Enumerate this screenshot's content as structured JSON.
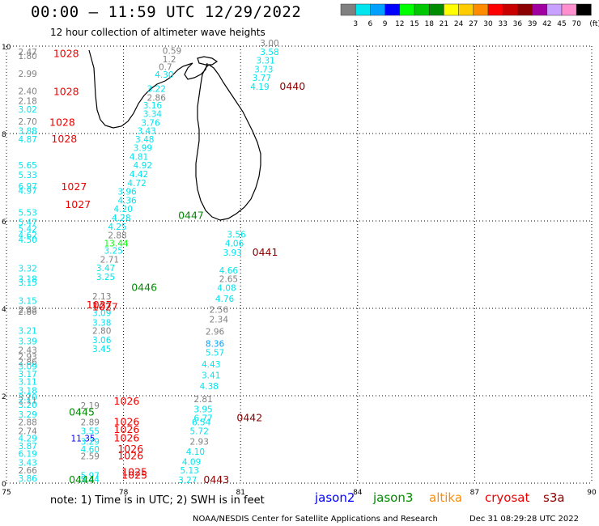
{
  "header": {
    "title": "00:00 – 11:59 UTC 12/29/2022",
    "subtitle": "12 hour collection of altimeter wave heights"
  },
  "legend": {
    "unit": "(ft)",
    "bins": [
      {
        "label": "3",
        "color": "#808080"
      },
      {
        "label": "6",
        "color": "#00e5ee"
      },
      {
        "label": "9",
        "color": "#00a0ff"
      },
      {
        "label": "12",
        "color": "#0000ff"
      },
      {
        "label": "15",
        "color": "#00ff00"
      },
      {
        "label": "18",
        "color": "#00c800"
      },
      {
        "label": "21",
        "color": "#008c00"
      },
      {
        "label": "24",
        "color": "#ffff00"
      },
      {
        "label": "27",
        "color": "#ffcc00"
      },
      {
        "label": "30",
        "color": "#ff8c00"
      },
      {
        "label": "33",
        "color": "#ff0000"
      },
      {
        "label": "36",
        "color": "#c80000"
      },
      {
        "label": "39",
        "color": "#8b0000"
      },
      {
        "label": "42",
        "color": "#a000a0"
      },
      {
        "label": "45",
        "color": "#c8a0ff"
      },
      {
        "label": "70",
        "color": "#ff90d0"
      },
      {
        "label": "",
        "color": "#000000"
      }
    ]
  },
  "map": {
    "x_ticks": [
      "75",
      "78",
      "81",
      "84",
      "87",
      "90"
    ],
    "y_ticks": [
      "0",
      "2",
      "4",
      "6",
      "8",
      "10"
    ],
    "x_range": [
      75,
      90
    ],
    "y_range": [
      0,
      10
    ]
  },
  "observations": [
    {
      "x": 75.3,
      "y": 9.8,
      "v": "2.47",
      "c": "#808080"
    },
    {
      "x": 75.3,
      "y": 9.7,
      "v": "1.80",
      "c": "#808080"
    },
    {
      "x": 75.3,
      "y": 9.3,
      "v": "2.99",
      "c": "#808080"
    },
    {
      "x": 75.3,
      "y": 8.9,
      "v": "2.40",
      "c": "#808080"
    },
    {
      "x": 75.3,
      "y": 8.68,
      "v": "2.18",
      "c": "#808080"
    },
    {
      "x": 75.3,
      "y": 8.48,
      "v": "3.02",
      "c": "#00e5ee"
    },
    {
      "x": 75.3,
      "y": 8.2,
      "v": "2.70",
      "c": "#808080"
    },
    {
      "x": 75.3,
      "y": 7.99,
      "v": "3.88",
      "c": "#00e5ee"
    },
    {
      "x": 75.3,
      "y": 7.8,
      "v": "4.87",
      "c": "#00e5ee"
    },
    {
      "x": 75.3,
      "y": 7.2,
      "v": "5.65",
      "c": "#00e5ee"
    },
    {
      "x": 75.3,
      "y": 6.98,
      "v": "5.33",
      "c": "#00e5ee"
    },
    {
      "x": 75.3,
      "y": 6.72,
      "v": "6.97",
      "c": "#00e5ee"
    },
    {
      "x": 75.3,
      "y": 6.62,
      "v": "4.97",
      "c": "#00e5ee"
    },
    {
      "x": 75.3,
      "y": 6.12,
      "v": "5.53",
      "c": "#00e5ee"
    },
    {
      "x": 75.3,
      "y": 5.9,
      "v": "5.47",
      "c": "#00e5ee"
    },
    {
      "x": 75.3,
      "y": 5.75,
      "v": "5.42",
      "c": "#00e5ee"
    },
    {
      "x": 75.3,
      "y": 5.6,
      "v": "4.62",
      "c": "#00e5ee"
    },
    {
      "x": 75.3,
      "y": 5.5,
      "v": "4.50",
      "c": "#00e5ee"
    },
    {
      "x": 75.3,
      "y": 4.84,
      "v": "3.32",
      "c": "#00e5ee"
    },
    {
      "x": 75.3,
      "y": 4.6,
      "v": "3.18",
      "c": "#00e5ee"
    },
    {
      "x": 75.3,
      "y": 4.52,
      "v": "3.15",
      "c": "#00e5ee"
    },
    {
      "x": 75.3,
      "y": 4.1,
      "v": "3.15",
      "c": "#00e5ee"
    },
    {
      "x": 75.3,
      "y": 3.9,
      "v": "2.83",
      "c": "#808080"
    },
    {
      "x": 75.3,
      "y": 3.85,
      "v": "2.86",
      "c": "#808080"
    },
    {
      "x": 77.2,
      "y": 4.2,
      "v": "2.13",
      "c": "#808080"
    },
    {
      "x": 77.2,
      "y": 4.0,
      "v": "2.52",
      "c": "#808080"
    },
    {
      "x": 77.2,
      "y": 3.82,
      "v": "3.09",
      "c": "#00e5ee"
    },
    {
      "x": 77.2,
      "y": 3.6,
      "v": "3.38",
      "c": "#00e5ee"
    },
    {
      "x": 77.2,
      "y": 3.42,
      "v": "2.80",
      "c": "#808080"
    },
    {
      "x": 75.3,
      "y": 3.42,
      "v": "3.21",
      "c": "#00e5ee"
    },
    {
      "x": 75.3,
      "y": 3.18,
      "v": "3.39",
      "c": "#00e5ee"
    },
    {
      "x": 77.2,
      "y": 3.2,
      "v": "3.06",
      "c": "#00e5ee"
    },
    {
      "x": 77.2,
      "y": 3.0,
      "v": "3.45",
      "c": "#00e5ee"
    },
    {
      "x": 75.3,
      "y": 2.97,
      "v": "2.43",
      "c": "#808080"
    },
    {
      "x": 75.3,
      "y": 2.82,
      "v": "2.93",
      "c": "#808080"
    },
    {
      "x": 75.3,
      "y": 2.7,
      "v": "2.86",
      "c": "#808080"
    },
    {
      "x": 75.3,
      "y": 2.6,
      "v": "3.09",
      "c": "#00e5ee"
    },
    {
      "x": 75.3,
      "y": 2.43,
      "v": "3.17",
      "c": "#00e5ee"
    },
    {
      "x": 75.3,
      "y": 2.25,
      "v": "3.11",
      "c": "#00e5ee"
    },
    {
      "x": 75.3,
      "y": 2.05,
      "v": "3.18",
      "c": "#00e5ee"
    },
    {
      "x": 75.3,
      "y": 1.9,
      "v": "3.20",
      "c": "#00e5ee"
    },
    {
      "x": 75.3,
      "y": 1.82,
      "v": "2.11",
      "c": "#808080"
    },
    {
      "x": 75.3,
      "y": 1.72,
      "v": "3.20",
      "c": "#00e5ee"
    },
    {
      "x": 76.9,
      "y": 1.7,
      "v": "2.19",
      "c": "#808080"
    },
    {
      "x": 75.3,
      "y": 1.5,
      "v": "3.29",
      "c": "#00e5ee"
    },
    {
      "x": 75.3,
      "y": 1.32,
      "v": "2.88",
      "c": "#808080"
    },
    {
      "x": 76.9,
      "y": 1.32,
      "v": "2.89",
      "c": "#808080"
    },
    {
      "x": 75.3,
      "y": 1.12,
      "v": "2.74",
      "c": "#808080"
    },
    {
      "x": 76.9,
      "y": 1.12,
      "v": "3.55",
      "c": "#00e5ee"
    },
    {
      "x": 75.3,
      "y": 0.95,
      "v": "4.29",
      "c": "#00e5ee"
    },
    {
      "x": 76.65,
      "y": 0.95,
      "v": "11.35",
      "c": "#0000ff"
    },
    {
      "x": 76.9,
      "y": 0.88,
      "v": "3.29",
      "c": "#00e5ee"
    },
    {
      "x": 75.3,
      "y": 0.78,
      "v": "3.87",
      "c": "#00e5ee"
    },
    {
      "x": 76.9,
      "y": 0.7,
      "v": "4.60",
      "c": "#00e5ee"
    },
    {
      "x": 75.3,
      "y": 0.6,
      "v": "6.19",
      "c": "#00e5ee"
    },
    {
      "x": 76.9,
      "y": 0.55,
      "v": "2.59",
      "c": "#808080"
    },
    {
      "x": 75.3,
      "y": 0.4,
      "v": "3.43",
      "c": "#00e5ee"
    },
    {
      "x": 75.3,
      "y": 0.22,
      "v": "2.66",
      "c": "#808080"
    },
    {
      "x": 75.3,
      "y": 0.04,
      "v": "3.86",
      "c": "#00e5ee"
    },
    {
      "x": 76.9,
      "y": 0.1,
      "v": "5.97",
      "c": "#00e5ee"
    },
    {
      "x": 76.9,
      "y": 0.02,
      "v": "5.44",
      "c": "#00e5ee"
    },
    {
      "x": 79.0,
      "y": 9.82,
      "v": "0.59",
      "c": "#808080"
    },
    {
      "x": 79.0,
      "y": 9.63,
      "v": "1.2",
      "c": "#808080"
    },
    {
      "x": 78.9,
      "y": 9.45,
      "v": "0.7",
      "c": "#808080"
    },
    {
      "x": 78.8,
      "y": 9.28,
      "v": "4.30",
      "c": "#00e5ee"
    },
    {
      "x": 78.6,
      "y": 8.95,
      "v": "3.22",
      "c": "#00e5ee"
    },
    {
      "x": 78.6,
      "y": 8.75,
      "v": "2.86",
      "c": "#808080"
    },
    {
      "x": 78.5,
      "y": 8.57,
      "v": "3.16",
      "c": "#00e5ee"
    },
    {
      "x": 78.5,
      "y": 8.38,
      "v": "3.34",
      "c": "#00e5ee"
    },
    {
      "x": 78.45,
      "y": 8.18,
      "v": "3.76",
      "c": "#00e5ee"
    },
    {
      "x": 78.35,
      "y": 7.99,
      "v": "3.43",
      "c": "#00e5ee"
    },
    {
      "x": 78.3,
      "y": 7.8,
      "v": "3.48",
      "c": "#00e5ee"
    },
    {
      "x": 78.25,
      "y": 7.6,
      "v": "3.99",
      "c": "#00e5ee"
    },
    {
      "x": 78.15,
      "y": 7.4,
      "v": "4.81",
      "c": "#00e5ee"
    },
    {
      "x": 78.25,
      "y": 7.2,
      "v": "4.92",
      "c": "#00e5ee"
    },
    {
      "x": 78.15,
      "y": 7.0,
      "v": "4.42",
      "c": "#00e5ee"
    },
    {
      "x": 78.1,
      "y": 6.8,
      "v": "4.72",
      "c": "#00e5ee"
    },
    {
      "x": 77.85,
      "y": 6.6,
      "v": "3.96",
      "c": "#00e5ee"
    },
    {
      "x": 77.85,
      "y": 6.4,
      "v": "4.36",
      "c": "#00e5ee"
    },
    {
      "x": 77.75,
      "y": 6.2,
      "v": "4.20",
      "c": "#00e5ee"
    },
    {
      "x": 77.7,
      "y": 6.0,
      "v": "4.28",
      "c": "#00e5ee"
    },
    {
      "x": 77.6,
      "y": 5.8,
      "v": "4.25",
      "c": "#00e5ee"
    },
    {
      "x": 77.6,
      "y": 5.6,
      "v": "2.88",
      "c": "#808080"
    },
    {
      "x": 77.5,
      "y": 5.42,
      "v": "13.44",
      "c": "#00ff00"
    },
    {
      "x": 77.5,
      "y": 5.25,
      "v": "3.25",
      "c": "#00e5ee"
    },
    {
      "x": 77.4,
      "y": 5.05,
      "v": "2.71",
      "c": "#808080"
    },
    {
      "x": 77.3,
      "y": 4.85,
      "v": "3.47",
      "c": "#00e5ee"
    },
    {
      "x": 77.3,
      "y": 4.65,
      "v": "3.25",
      "c": "#00e5ee"
    },
    {
      "x": 81.5,
      "y": 10.0,
      "v": "3.00",
      "c": "#808080"
    },
    {
      "x": 81.5,
      "y": 9.8,
      "v": "3.58",
      "c": "#00e5ee"
    },
    {
      "x": 81.4,
      "y": 9.6,
      "v": "3.31",
      "c": "#00e5ee"
    },
    {
      "x": 81.35,
      "y": 9.4,
      "v": "3.73",
      "c": "#00e5ee"
    },
    {
      "x": 81.3,
      "y": 9.2,
      "v": "3.77",
      "c": "#00e5ee"
    },
    {
      "x": 81.25,
      "y": 9.0,
      "v": "4.19",
      "c": "#00e5ee"
    },
    {
      "x": 80.65,
      "y": 5.62,
      "v": "3.56",
      "c": "#00e5ee"
    },
    {
      "x": 80.6,
      "y": 5.42,
      "v": "4.06",
      "c": "#00e5ee"
    },
    {
      "x": 80.55,
      "y": 5.2,
      "v": "3.93",
      "c": "#00e5ee"
    },
    {
      "x": 80.45,
      "y": 4.8,
      "v": "4.66",
      "c": "#00e5ee"
    },
    {
      "x": 80.45,
      "y": 4.6,
      "v": "2.65",
      "c": "#808080"
    },
    {
      "x": 80.4,
      "y": 4.4,
      "v": "4.08",
      "c": "#00e5ee"
    },
    {
      "x": 80.35,
      "y": 4.15,
      "v": "4.76",
      "c": "#00e5ee"
    },
    {
      "x": 80.2,
      "y": 3.9,
      "v": "2.56",
      "c": "#808080"
    },
    {
      "x": 80.2,
      "y": 3.68,
      "v": "2.34",
      "c": "#808080"
    },
    {
      "x": 80.1,
      "y": 3.4,
      "v": "2.96",
      "c": "#808080"
    },
    {
      "x": 80.1,
      "y": 3.12,
      "v": "8.36",
      "c": "#00a0ff"
    },
    {
      "x": 80.1,
      "y": 2.92,
      "v": "5.57",
      "c": "#00e5ee"
    },
    {
      "x": 80.0,
      "y": 2.65,
      "v": "4.43",
      "c": "#00e5ee"
    },
    {
      "x": 80.0,
      "y": 2.4,
      "v": "3.41",
      "c": "#00e5ee"
    },
    {
      "x": 79.95,
      "y": 2.15,
      "v": "4.38",
      "c": "#00e5ee"
    },
    {
      "x": 79.8,
      "y": 1.85,
      "v": "2.81",
      "c": "#808080"
    },
    {
      "x": 79.8,
      "y": 1.62,
      "v": "3.95",
      "c": "#00e5ee"
    },
    {
      "x": 79.8,
      "y": 1.42,
      "v": "6.77",
      "c": "#00e5ee"
    },
    {
      "x": 79.75,
      "y": 1.32,
      "v": "6.54",
      "c": "#00e5ee"
    },
    {
      "x": 79.7,
      "y": 1.12,
      "v": "5.72",
      "c": "#00e5ee"
    },
    {
      "x": 79.7,
      "y": 0.88,
      "v": "2.93",
      "c": "#808080"
    },
    {
      "x": 79.6,
      "y": 0.65,
      "v": "4.10",
      "c": "#00e5ee"
    },
    {
      "x": 79.5,
      "y": 0.42,
      "v": "4.09",
      "c": "#00e5ee"
    },
    {
      "x": 79.45,
      "y": 0.22,
      "v": "5.13",
      "c": "#00e5ee"
    },
    {
      "x": 79.4,
      "y": 0.0,
      "v": "3.27",
      "c": "#00e5ee"
    }
  ],
  "time_tags": [
    {
      "x": 76.2,
      "y": 9.75,
      "v": "1028",
      "c": "#ee0000"
    },
    {
      "x": 76.2,
      "y": 8.88,
      "v": "1028",
      "c": "#ee0000"
    },
    {
      "x": 76.1,
      "y": 8.18,
      "v": "1028",
      "c": "#ee0000"
    },
    {
      "x": 76.15,
      "y": 7.8,
      "v": "1028",
      "c": "#ee0000"
    },
    {
      "x": 76.4,
      "y": 6.7,
      "v": "1027",
      "c": "#ee0000"
    },
    {
      "x": 76.5,
      "y": 6.3,
      "v": "1027",
      "c": "#ee0000"
    },
    {
      "x": 77.05,
      "y": 4.0,
      "v": "1027",
      "c": "#ee0000"
    },
    {
      "x": 77.2,
      "y": 3.95,
      "v": "1027",
      "c": "#ee0000"
    },
    {
      "x": 77.75,
      "y": 1.8,
      "v": "1026",
      "c": "#ee0000"
    },
    {
      "x": 77.75,
      "y": 1.32,
      "v": "1026",
      "c": "#ee0000"
    },
    {
      "x": 77.75,
      "y": 1.15,
      "v": "1026",
      "c": "#ee0000"
    },
    {
      "x": 77.75,
      "y": 0.95,
      "v": "1026",
      "c": "#ee0000"
    },
    {
      "x": 77.85,
      "y": 0.7,
      "v": "1026",
      "c": "#ee0000"
    },
    {
      "x": 77.85,
      "y": 0.55,
      "v": "1026",
      "c": "#ee0000"
    },
    {
      "x": 77.95,
      "y": 0.18,
      "v": "1025",
      "c": "#ee0000"
    },
    {
      "x": 77.95,
      "y": 0.1,
      "v": "1025",
      "c": "#ee0000"
    },
    {
      "x": 78.0,
      "y": 6.05,
      "v": "0447",
      "c": "#008c00",
      "dx": 1.4,
      "dy": 0.0
    },
    {
      "x": 78.2,
      "y": 4.4,
      "v": "0446",
      "c": "#008c00"
    },
    {
      "x": 76.6,
      "y": 1.55,
      "v": "0445",
      "c": "#008c00"
    },
    {
      "x": 76.6,
      "y": 0.0,
      "v": "0444",
      "c": "#008c00"
    },
    {
      "x": 82.0,
      "y": 9.0,
      "v": "0440",
      "c": "#8b0000"
    },
    {
      "x": 81.3,
      "y": 5.2,
      "v": "0441",
      "c": "#8b0000"
    },
    {
      "x": 80.9,
      "y": 1.42,
      "v": "0442",
      "c": "#8b0000"
    },
    {
      "x": 80.05,
      "y": 0.0,
      "v": "0443",
      "c": "#8b0000"
    }
  ],
  "footer": {
    "note": "note: 1) Time is in UTC; 2) SWH is in feet",
    "satellites": [
      {
        "name": "jason2",
        "color": "#0000ff"
      },
      {
        "name": "jason3",
        "color": "#008c00"
      },
      {
        "name": "altika",
        "color": "#ff8c00"
      },
      {
        "name": "cryosat",
        "color": "#ee0000"
      },
      {
        "name": "s3a",
        "color": "#8b0000"
      }
    ],
    "credit": "NOAA/NESDIS Center for Satellite Applications and Research",
    "timestamp": "Dec 31 08:29:28 UTC 2022"
  }
}
